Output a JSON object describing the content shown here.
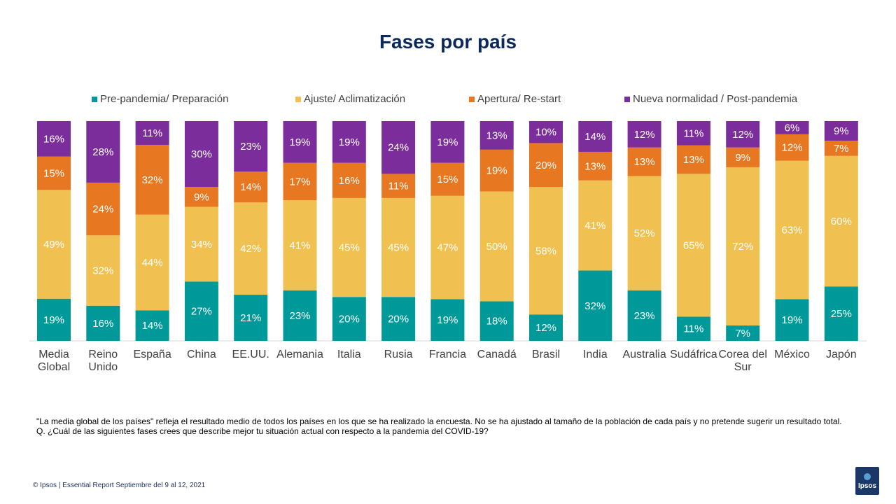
{
  "title": "Fases por país",
  "chart_data": {
    "type": "bar",
    "stacked": true,
    "categories": [
      "Media Global",
      "Reino Unido",
      "España",
      "China",
      "EE.UU.",
      "Alemania",
      "Italia",
      "Rusia",
      "Francia",
      "Canadá",
      "Brasil",
      "India",
      "Australia",
      "Sudáfrica",
      "Corea del Sur",
      "México",
      "Japón"
    ],
    "series": [
      {
        "name": "Pre-pandemia/ Preparación",
        "color": "#009999",
        "values": [
          19,
          16,
          14,
          27,
          21,
          23,
          20,
          20,
          19,
          18,
          12,
          32,
          23,
          11,
          7,
          19,
          25
        ]
      },
      {
        "name": "Ajuste/ Aclimatización",
        "color": "#f0c050",
        "values": [
          49,
          32,
          44,
          34,
          42,
          41,
          45,
          45,
          47,
          50,
          58,
          41,
          52,
          65,
          72,
          63,
          60
        ]
      },
      {
        "name": "Apertura/ Re-start",
        "color": "#e87722",
        "values": [
          15,
          24,
          32,
          9,
          14,
          17,
          16,
          11,
          15,
          19,
          20,
          13,
          13,
          13,
          9,
          12,
          7
        ]
      },
      {
        "name": "Nueva normalidad / Post-pandemia",
        "color": "#7b2e9b",
        "values": [
          16,
          28,
          11,
          30,
          23,
          19,
          19,
          24,
          19,
          13,
          10,
          14,
          12,
          11,
          12,
          6,
          9
        ]
      }
    ],
    "value_suffix": "%",
    "legend_position": "top",
    "grid": false
  },
  "footnote": {
    "line1": "\"La media global de los países\" refleja el resultado medio de todos los países en los que se ha realizado la encuesta. No se ha ajustado al tamaño de la población de cada país y no pretende sugerir un resultado total.",
    "line2": "Q. ¿Cuál de las siguientes fases crees que describe mejor tu situación actual con respecto a la pandemia del COVID-19?"
  },
  "footer": "© Ipsos | Essential Report Septiembre del 9 al 12, 2021",
  "logo": "Ipsos"
}
